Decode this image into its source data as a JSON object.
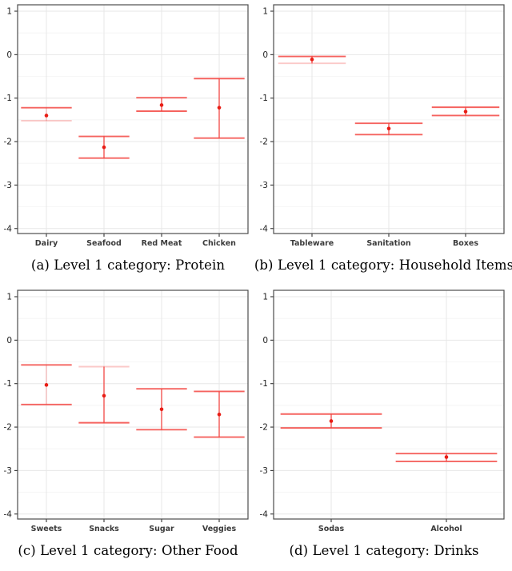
{
  "colors": {
    "errorbar": "#f4413d",
    "point": "#e81d15",
    "grid_major": "#e7e7e7",
    "grid_minor": "#f4f4f4",
    "panel_border": "#4d4d4d",
    "axis_tick": "#333333",
    "axis_text_y": "#1f1f1f",
    "axis_text_x": "#3b3b3b",
    "background": "#ffffff"
  },
  "chart_data": [
    {
      "type": "scatter",
      "subtype": "errorbar",
      "title": "(a) Level 1 category: Protein",
      "xlabel": "",
      "ylabel": "",
      "legend": "none",
      "grid": true,
      "ylim": [
        -4.15,
        1.15
      ],
      "yticks": [
        1,
        0,
        -1,
        -2,
        -3,
        -4
      ],
      "yticks_minor": [
        0.5,
        -0.5,
        -1.5,
        -2.5,
        -3.5
      ],
      "categories": [
        "Dairy",
        "Seafood",
        "Red Meat",
        "Chicken"
      ],
      "series": [
        {
          "name": "point_estimate",
          "values": [
            -1.4,
            -2.13,
            -1.16,
            -1.22
          ]
        },
        {
          "name": "ci_upper",
          "values": [
            -1.22,
            -1.88,
            -0.99,
            -0.55
          ]
        },
        {
          "name": "ci_lower",
          "values": [
            -1.52,
            -2.38,
            -1.3,
            -1.92
          ]
        }
      ],
      "style_flags": {
        "light_stem": [
          true,
          false,
          false,
          false
        ],
        "light_upper_cap": [
          false,
          false,
          false,
          false
        ],
        "light_lower_cap": [
          true,
          false,
          false,
          false
        ]
      }
    },
    {
      "type": "scatter",
      "subtype": "errorbar",
      "title": "(b) Level 1 category: Household Items",
      "xlabel": "",
      "ylabel": "",
      "legend": "none",
      "grid": true,
      "ylim": [
        -4.15,
        1.15
      ],
      "yticks": [
        1,
        0,
        -1,
        -2,
        -3,
        -4
      ],
      "yticks_minor": [
        0.5,
        -0.5,
        -1.5,
        -2.5,
        -3.5
      ],
      "categories": [
        "Tableware",
        "Sanitation",
        "Boxes"
      ],
      "series": [
        {
          "name": "point_estimate",
          "values": [
            -0.11,
            -1.7,
            -1.31
          ]
        },
        {
          "name": "ci_upper",
          "values": [
            -0.04,
            -1.58,
            -1.21
          ]
        },
        {
          "name": "ci_lower",
          "values": [
            -0.2,
            -1.84,
            -1.4
          ]
        }
      ],
      "style_flags": {
        "light_stem": [
          false,
          false,
          false
        ],
        "light_upper_cap": [
          false,
          false,
          false
        ],
        "light_lower_cap": [
          true,
          false,
          false
        ]
      }
    },
    {
      "type": "scatter",
      "subtype": "errorbar",
      "title": "(c) Level 1 category: Other Food",
      "xlabel": "",
      "ylabel": "",
      "legend": "none",
      "grid": true,
      "ylim": [
        -4.15,
        1.15
      ],
      "yticks": [
        1,
        0,
        -1,
        -2,
        -3,
        -4
      ],
      "yticks_minor": [
        0.5,
        -0.5,
        -1.5,
        -2.5,
        -3.5
      ],
      "categories": [
        "Sweets",
        "Snacks",
        "Sugar",
        "Veggies"
      ],
      "series": [
        {
          "name": "point_estimate",
          "values": [
            -1.03,
            -1.28,
            -1.59,
            -1.71
          ]
        },
        {
          "name": "ci_upper",
          "values": [
            -0.57,
            -0.61,
            -1.12,
            -1.18
          ]
        },
        {
          "name": "ci_lower",
          "values": [
            -1.48,
            -1.9,
            -2.06,
            -2.23
          ]
        }
      ],
      "style_flags": {
        "light_stem": [
          true,
          false,
          false,
          false
        ],
        "light_upper_cap": [
          false,
          true,
          false,
          false
        ],
        "light_lower_cap": [
          false,
          false,
          false,
          false
        ]
      }
    },
    {
      "type": "scatter",
      "subtype": "errorbar",
      "title": "(d) Level 1 category: Drinks",
      "xlabel": "",
      "ylabel": "",
      "legend": "none",
      "grid": true,
      "ylim": [
        -4.15,
        1.15
      ],
      "yticks": [
        1,
        0,
        -1,
        -2,
        -3,
        -4
      ],
      "yticks_minor": [
        0.5,
        -0.5,
        -1.5,
        -2.5,
        -3.5
      ],
      "categories": [
        "Sodas",
        "Alcohol"
      ],
      "series": [
        {
          "name": "point_estimate",
          "values": [
            -1.86,
            -2.69
          ]
        },
        {
          "name": "ci_upper",
          "values": [
            -1.7,
            -2.61
          ]
        },
        {
          "name": "ci_lower",
          "values": [
            -2.02,
            -2.79
          ]
        }
      ],
      "style_flags": {
        "light_stem": [
          false,
          false
        ],
        "light_upper_cap": [
          false,
          false
        ],
        "light_lower_cap": [
          false,
          false
        ]
      }
    }
  ]
}
